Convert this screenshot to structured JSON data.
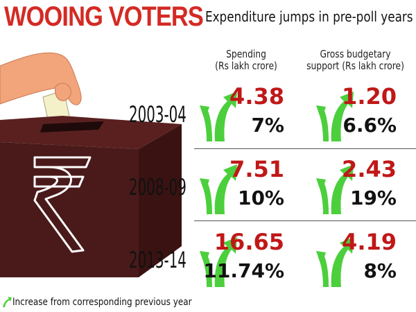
{
  "header": {
    "title": "WOOING VOTERS",
    "subtitle": "Expenditure jumps in pre-poll years"
  },
  "columns": {
    "spending": [
      "Spending",
      "(Rs lakh crore)"
    ],
    "gbs": [
      "Gross budgetary",
      "support (Rs lakh crore)"
    ]
  },
  "chart_data": {
    "type": "table",
    "title": "Expenditure jumps in pre-poll years",
    "rows": [
      {
        "year": "2003-04",
        "spending": "4.38",
        "spending_growth": "7%",
        "gbs": "1.20",
        "gbs_growth": "6.6%"
      },
      {
        "year": "2008-09",
        "spending": "7.51",
        "spending_growth": "10%",
        "gbs": "2.43",
        "gbs_growth": "19%"
      },
      {
        "year": "2013-14",
        "spending": "16.65",
        "spending_growth": "11.74%",
        "gbs": "4.19",
        "gbs_growth": "8%"
      }
    ]
  },
  "footer": {
    "legend": "Increase from corresponding previous year"
  },
  "colors": {
    "title": "#d42a24",
    "value": "#c01818",
    "arrow": "#4ccf3c",
    "box": "#4a1a1a"
  },
  "icons": {
    "illustration": "ballot-box-rupee-icon",
    "arrow": "green-up-arrow-icon"
  }
}
